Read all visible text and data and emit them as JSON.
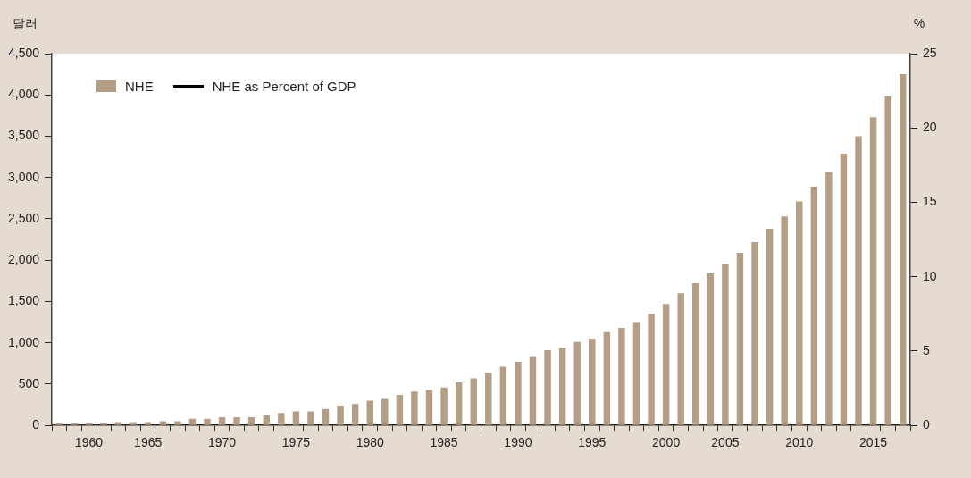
{
  "chart_data": {
    "type": "bar",
    "ylabel": "달러",
    "y2label": "%",
    "categories": [
      null,
      null,
      "1960",
      null,
      null,
      null,
      "1965",
      null,
      null,
      null,
      null,
      "1970",
      null,
      null,
      null,
      null,
      "1975",
      null,
      null,
      null,
      null,
      "1980",
      null,
      null,
      null,
      null,
      "1985",
      null,
      null,
      null,
      null,
      "1990",
      null,
      null,
      null,
      null,
      "1995",
      null,
      null,
      null,
      null,
      "2000",
      null,
      null,
      null,
      "2005",
      null,
      null,
      null,
      null,
      "2010",
      null,
      null,
      null,
      null,
      "2015",
      null,
      null
    ],
    "series": [
      {
        "name": "NHE",
        "color": "#b59e86",
        "values": [
          30,
          30,
          30,
          30,
          40,
          40,
          40,
          50,
          50,
          80,
          80,
          100,
          100,
          100,
          120,
          150,
          170,
          170,
          200,
          240,
          260,
          300,
          320,
          370,
          410,
          430,
          460,
          520,
          570,
          640,
          710,
          770,
          830,
          910,
          940,
          1010,
          1050,
          1130,
          1180,
          1250,
          1350,
          1470,
          1600,
          1720,
          1840,
          1950,
          2090,
          2220,
          2380,
          2530,
          2710,
          2890,
          3070,
          3290,
          3500,
          3730,
          3980,
          4250
        ]
      },
      {
        "name": "NHE as Percent of GDP",
        "type": "line",
        "axis": "y2",
        "color": "#000000",
        "values": [
          null,
          null,
          null,
          null,
          null,
          null,
          null,
          null,
          null,
          null,
          null,
          null,
          null,
          null,
          null,
          null,
          null,
          null,
          null,
          null,
          null,
          null,
          null,
          null,
          null,
          null,
          null,
          null,
          null,
          null,
          null,
          null,
          null,
          null,
          null,
          null,
          null,
          null,
          null,
          null,
          null,
          null,
          null,
          null,
          null,
          null,
          null,
          null,
          null,
          null,
          null,
          null,
          null,
          null,
          null,
          null,
          null,
          null
        ]
      }
    ],
    "ylim": [
      0,
      4500
    ],
    "yticks": [
      0,
      {
        "value": 500,
        "label": "500"
      },
      {
        "value": 1000,
        "label": "1,000"
      },
      {
        "value": 1500,
        "label": "1,500"
      },
      {
        "value": 2000,
        "label": "2,000"
      },
      {
        "value": 2500,
        "label": "2,500"
      },
      {
        "value": 3000,
        "label": "3,000"
      },
      {
        "value": 3500,
        "label": "3,500"
      },
      {
        "value": 4000,
        "label": "4,000"
      },
      {
        "value": 4500,
        "label": "4,500"
      }
    ],
    "y2lim": [
      0,
      25
    ],
    "y2ticks": [
      0,
      5,
      10,
      15,
      20,
      25
    ],
    "legend": "top left",
    "grid": false
  }
}
